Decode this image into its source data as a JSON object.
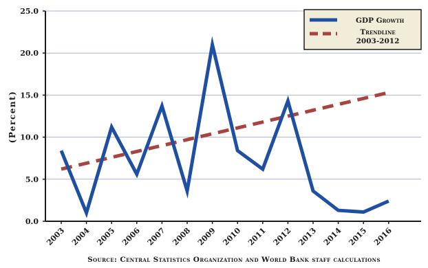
{
  "chart_data": {
    "type": "line",
    "x": [
      "2003",
      "2004",
      "2005",
      "2006",
      "2007",
      "2008",
      "2009",
      "2010",
      "2011",
      "2012",
      "2013",
      "2014",
      "2015",
      "2016"
    ],
    "series": [
      {
        "name": "GDP Growth",
        "color": "#1f4fa3",
        "style": "solid",
        "values": [
          8.4,
          1.0,
          11.2,
          5.6,
          13.7,
          3.6,
          21.0,
          8.4,
          6.2,
          14.3,
          3.6,
          1.3,
          1.1,
          2.4
        ]
      },
      {
        "name": "Trendline 2003-2012",
        "name_lines": [
          "Trendline",
          "2003-2012"
        ],
        "color": "#a9433f",
        "style": "dashed",
        "x_start": "2003",
        "x_end": "2016",
        "y_start": 6.2,
        "y_end": 15.3
      }
    ],
    "ylabel": "(Percent)",
    "ylim": [
      0,
      25
    ],
    "yticks": [
      "0.0",
      "5.0",
      "10.0",
      "15.0",
      "20.0",
      "25.0"
    ],
    "ytick_values": [
      0,
      5,
      10,
      15,
      20,
      25
    ],
    "grid": true,
    "legend_position": "top-right",
    "legend_background": "#f1edd9",
    "source": "Source: Central Statistics Organization and World Bank staff calculations"
  }
}
